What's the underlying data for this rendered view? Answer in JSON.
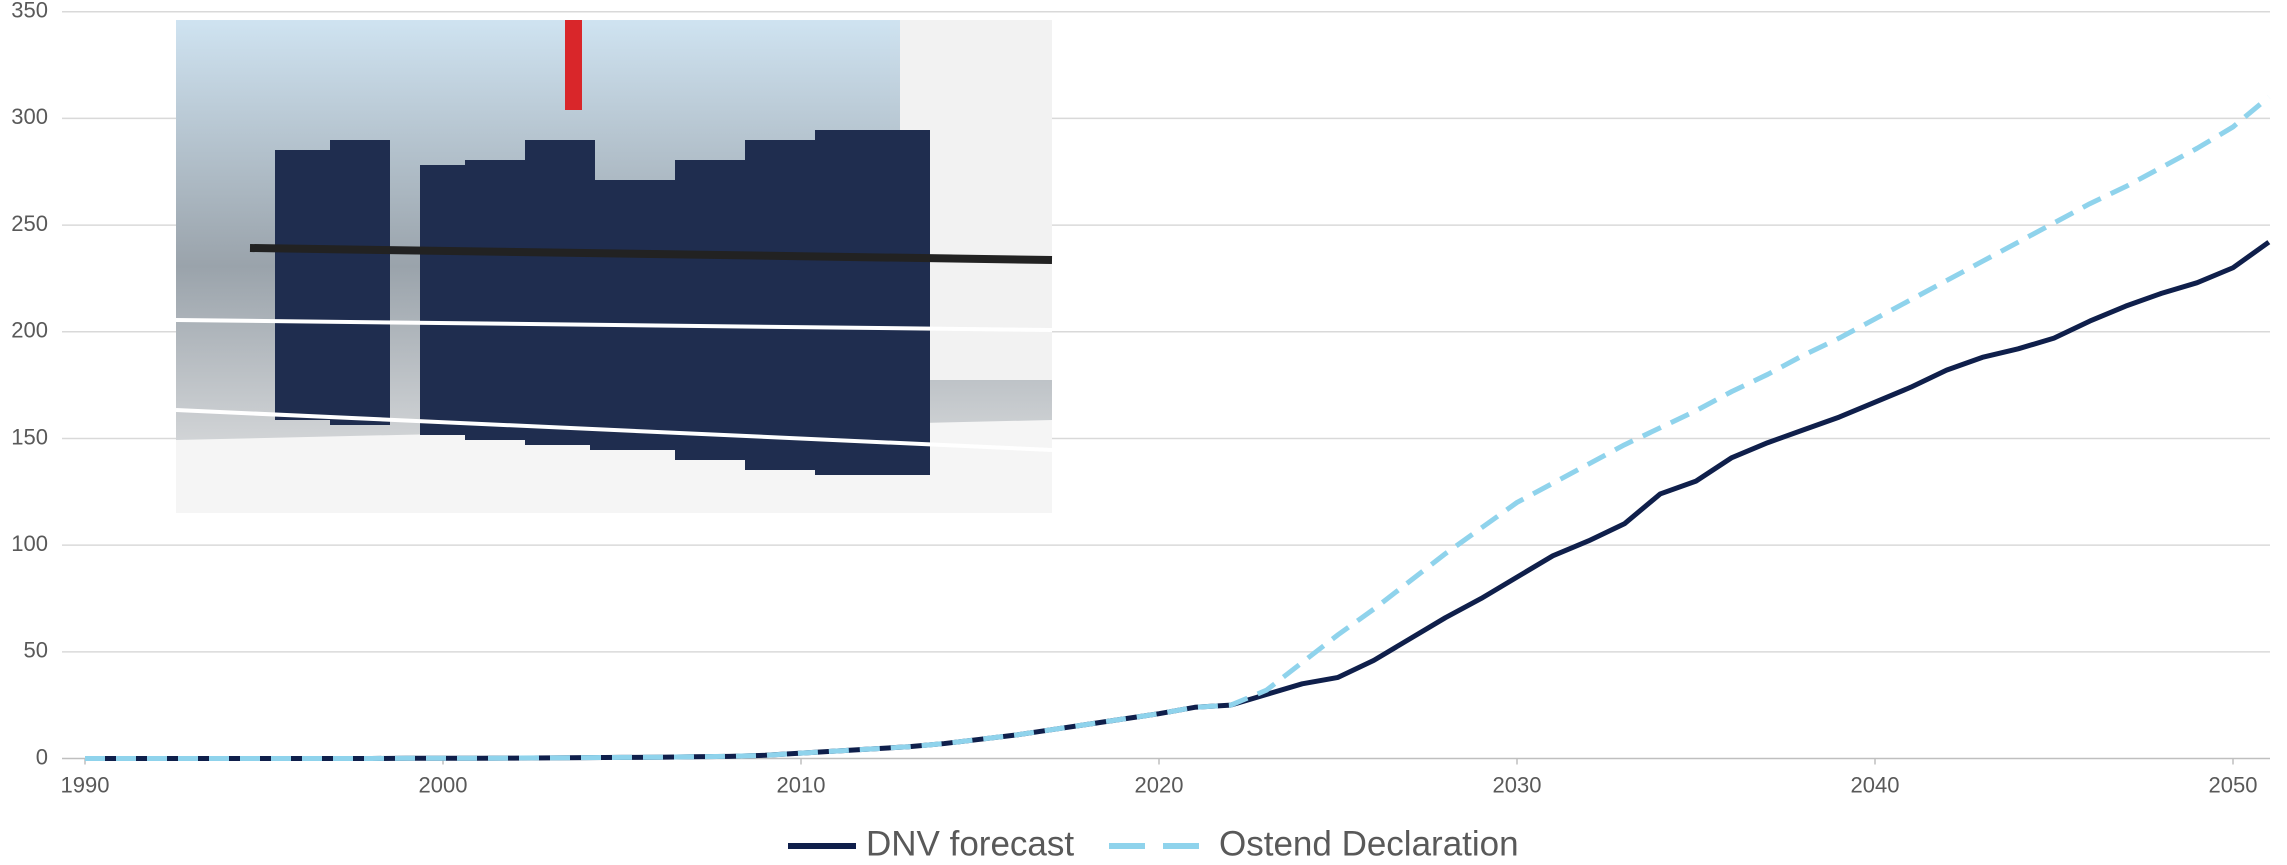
{
  "chart_data": {
    "type": "line",
    "x": [
      1990,
      1991,
      1992,
      1993,
      1994,
      1995,
      1996,
      1997,
      1998,
      1999,
      2000,
      2001,
      2002,
      2003,
      2004,
      2005,
      2006,
      2007,
      2008,
      2009,
      2010,
      2011,
      2012,
      2013,
      2014,
      2015,
      2016,
      2017,
      2018,
      2019,
      2020,
      2021,
      2022,
      2023,
      2024,
      2025,
      2026,
      2027,
      2028,
      2029,
      2030,
      2031,
      2032,
      2033,
      2034,
      2035,
      2036,
      2037,
      2038,
      2039,
      2040,
      2041,
      2042,
      2043,
      2044,
      2045,
      2046,
      2047,
      2048,
      2049,
      2050,
      2051
    ],
    "series": [
      {
        "name": "DNV forecast",
        "color": "#0f1f4b",
        "dash": false,
        "values": [
          0,
          0,
          0,
          0,
          0,
          0,
          0,
          0,
          0,
          0.1,
          0.1,
          0.1,
          0.2,
          0.3,
          0.4,
          0.5,
          0.6,
          0.8,
          1,
          1.5,
          2.5,
          3.5,
          4.5,
          5.5,
          7,
          9,
          11,
          13.5,
          16,
          18.5,
          21,
          24,
          25,
          30,
          35,
          38,
          46,
          56,
          66,
          75,
          85,
          95,
          102,
          110,
          124,
          130,
          141,
          148,
          154,
          160,
          167,
          174,
          182,
          188,
          192,
          197,
          205,
          212,
          218,
          223,
          230,
          242
        ]
      },
      {
        "name": "Ostend Declaration",
        "color": "#8fd3ec",
        "dash": true,
        "values": [
          0,
          0,
          0,
          0,
          0,
          0,
          0,
          0,
          0,
          0.1,
          0.1,
          0.1,
          0.2,
          0.3,
          0.4,
          0.5,
          0.6,
          0.8,
          1,
          1.5,
          2.5,
          3.5,
          4.5,
          5.5,
          7,
          9,
          11,
          13.5,
          16,
          18.5,
          21,
          24,
          25,
          32,
          45,
          58,
          70,
          83,
          96,
          108,
          120,
          129,
          138,
          147,
          155,
          163,
          172,
          180,
          189,
          197,
          206,
          215,
          224,
          233,
          242,
          251,
          260,
          268,
          277,
          286,
          296,
          310
        ]
      }
    ],
    "xlim": [
      1990,
      2051
    ],
    "xticks": [
      1990,
      2000,
      2010,
      2020,
      2030,
      2040,
      2050
    ],
    "ylim": [
      0,
      350
    ],
    "yticks": [
      0,
      50,
      100,
      150,
      200,
      250,
      300,
      350
    ],
    "grid": true
  }
}
